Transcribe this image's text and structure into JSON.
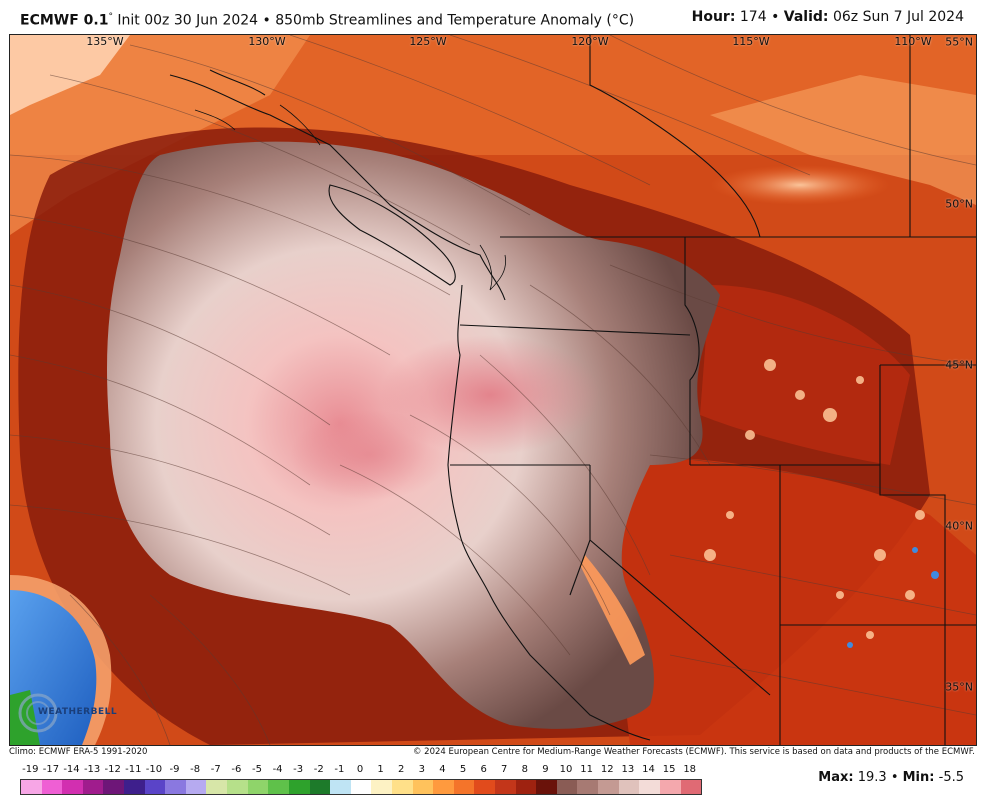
{
  "header": {
    "model": "ECMWF 0.1",
    "degree_symbol": "°",
    "subtitle": "Init 00z 30 Jun 2024 • 850mb Streamlines and Temperature Anomaly (°C)",
    "hour_label": "Hour:",
    "hour_value": "174",
    "valid_label": "Valid:",
    "valid_value": "06z Sun 7 Jul 2024",
    "separator": "•"
  },
  "map": {
    "longitude_labels": [
      "135°W",
      "130°W",
      "125°W",
      "120°W",
      "115°W",
      "110°W"
    ],
    "latitude_labels": [
      "55°N",
      "50°N",
      "45°N",
      "40°N",
      "35°N"
    ],
    "logo_text": "WEATHERBELL",
    "colors": {
      "warm_deep": "#8a1c0c",
      "warm_mid": "#c43a13",
      "warm_light": "#f06a2a",
      "warm_pale": "#ffb98a",
      "cool_anomaly_brown": "#7a5a52",
      "cool_anomaly_pale": "#f1dcd6",
      "cool_anomaly_pink": "#e98e95",
      "ocean_blue": "#3f8be0"
    }
  },
  "credits": {
    "climo": "Climo: ECMWF ERA-5 1991-2020",
    "copyright": "© 2024 European Centre for Medium-Range Weather Forecasts (ECMWF). This service is based on data and products of the ECMWF."
  },
  "legend": {
    "labels": [
      "-19",
      "-17",
      "-14",
      "-13",
      "-12",
      "-11",
      "-10",
      "-9",
      "-8",
      "-7",
      "-6",
      "-5",
      "-4",
      "-3",
      "-2",
      "-1",
      "0",
      "1",
      "2",
      "3",
      "4",
      "5",
      "6",
      "7",
      "8",
      "9",
      "10",
      "11",
      "12",
      "13",
      "14",
      "15",
      "18"
    ],
    "colors": [
      "#f7a6e6",
      "#ef5fd4",
      "#d22fb0",
      "#a01c8d",
      "#6e1678",
      "#3e1f8c",
      "#5a44c8",
      "#8a78e0",
      "#b6aaf0",
      "#d7e6a8",
      "#b6e08a",
      "#8fd46a",
      "#5fc14a",
      "#2ea22c",
      "#1d7a2a",
      "#bfe4f4",
      "#ffffff",
      "#fdf2c4",
      "#ffe089",
      "#ffc25c",
      "#ff9a3e",
      "#f4742a",
      "#e14b1c",
      "#c3361a",
      "#9e2210",
      "#6a120a",
      "#8a5c55",
      "#a77a73",
      "#c49a93",
      "#e0c2bc",
      "#f3dcd8",
      "#f4a8ad",
      "#e06a74"
    ],
    "max_label": "Max:",
    "max_value": "19.3",
    "min_label": "Min:",
    "min_value": "-5.5"
  }
}
